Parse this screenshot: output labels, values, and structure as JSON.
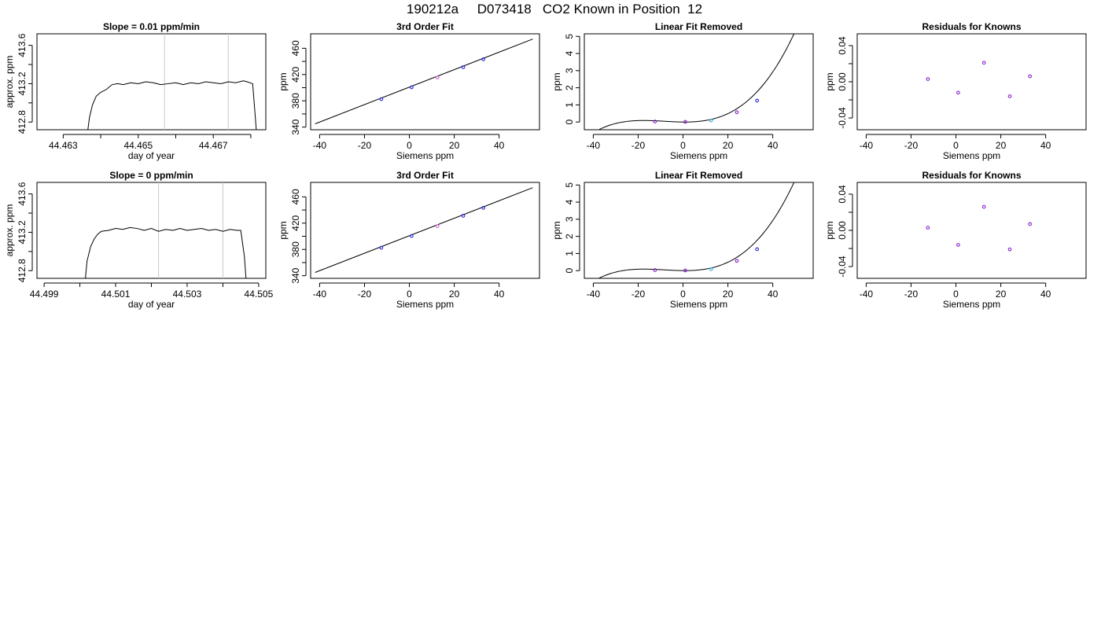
{
  "figure": {
    "title": "190212a     D073418   CO2 Known in Position  12"
  },
  "chart_data": [
    {
      "type": "line",
      "title": "Slope =  0.01  ppm/min",
      "xlabel": "day of year",
      "ylabel": "approx. ppm",
      "xlim": [
        44.4623,
        44.4684
      ],
      "ylim": [
        412.72,
        413.72
      ],
      "xticks": [
        44.463,
        44.464,
        44.465,
        44.466,
        44.467,
        44.468
      ],
      "xtick_labels": [
        "44.463",
        "",
        "44.465",
        "",
        "44.467",
        ""
      ],
      "yticks": [
        412.8,
        413.0,
        413.2,
        413.4,
        413.6
      ],
      "ytick_labels": [
        "412.8",
        "",
        "413.2",
        "",
        "413.6"
      ],
      "vlines": [
        44.4657,
        44.4674
      ],
      "vline_color": "#c8c8c8",
      "series": [
        {
          "color": "#000000",
          "x": [
            44.46365,
            44.4637,
            44.46378,
            44.46388,
            44.464,
            44.46415,
            44.4643,
            44.46445,
            44.4646,
            44.4648,
            44.465,
            44.4652,
            44.4654,
            44.4656,
            44.4658,
            44.466,
            44.4662,
            44.4664,
            44.4666,
            44.4668,
            44.467,
            44.4672,
            44.4674,
            44.4676,
            44.4678,
            44.4679,
            44.46805,
            44.4681,
            44.46815
          ],
          "y": [
            412.7,
            412.85,
            412.98,
            413.07,
            413.11,
            413.14,
            413.19,
            413.2,
            413.19,
            413.21,
            413.2,
            413.22,
            413.21,
            413.19,
            413.2,
            413.21,
            413.19,
            413.21,
            413.2,
            413.22,
            413.21,
            413.2,
            413.22,
            413.21,
            413.23,
            413.22,
            413.2,
            412.95,
            412.7
          ]
        }
      ]
    },
    {
      "type": "line",
      "title": "3rd Order Fit",
      "xlabel": "Siemens ppm",
      "ylabel": "ppm",
      "xlim": [
        -44,
        58
      ],
      "ylim": [
        336,
        482
      ],
      "xticks": [
        -40,
        -20,
        0,
        20,
        40
      ],
      "xtick_labels": [
        "-40",
        "-20",
        "0",
        "20",
        "40"
      ],
      "yticks": [
        340,
        360,
        380,
        400,
        420,
        440,
        460
      ],
      "ytick_labels": [
        "340",
        "",
        "380",
        "",
        "420",
        "",
        "460"
      ],
      "series": [
        {
          "color": "#000000",
          "x": [
            -42,
            55
          ],
          "y": [
            345,
            474
          ]
        }
      ],
      "points": {
        "x": [
          -12.5,
          1.0,
          12.5,
          24.0,
          33.0
        ],
        "y": [
          382.5,
          400.5,
          415.5,
          431.2,
          443.3
        ],
        "colors": [
          "#2222dd",
          "#2222dd",
          "#cc66cc",
          "#2222dd",
          "#2222dd"
        ]
      }
    },
    {
      "type": "line",
      "title": "Linear Fit Removed",
      "xlabel": "Siemens ppm",
      "ylabel": "ppm",
      "xlim": [
        -44,
        58
      ],
      "ylim": [
        -0.45,
        5.15
      ],
      "xticks": [
        -40,
        -20,
        0,
        20,
        40
      ],
      "xtick_labels": [
        "-40",
        "-20",
        "0",
        "20",
        "40"
      ],
      "yticks": [
        0,
        1,
        2,
        3,
        4,
        5
      ],
      "ytick_labels": [
        "0",
        "1",
        "2",
        "3",
        "4",
        "5"
      ],
      "curve_coefficients": {
        "a": 2.85e-05,
        "b": 0.00072,
        "c": -0.00122,
        "d": 0.0
      },
      "curve_range": [
        -42,
        55
      ],
      "points": {
        "x": [
          -12.5,
          1.0,
          12.5,
          24.0,
          33.0
        ],
        "y": [
          0.03,
          0.01,
          0.09,
          0.57,
          1.25
        ],
        "colors": [
          "#8a1ecc",
          "#8a1ecc",
          "#33aadd",
          "#8a1ecc",
          "#2222dd"
        ]
      }
    },
    {
      "type": "scatter",
      "title": "Residuals for Knowns",
      "xlabel": "Siemens ppm",
      "ylabel": "ppm",
      "xlim": [
        -44,
        58
      ],
      "ylim": [
        -0.053,
        0.053
      ],
      "xticks": [
        -40,
        -20,
        0,
        20,
        40
      ],
      "xtick_labels": [
        "-40",
        "-20",
        "0",
        "20",
        "40"
      ],
      "yticks": [
        -0.04,
        -0.02,
        0.0,
        0.02,
        0.04
      ],
      "ytick_labels": [
        "-0.04",
        "",
        "0.00",
        "",
        "0.04"
      ],
      "points": {
        "x": [
          -12.5,
          1.0,
          12.5,
          24.0,
          33.0
        ],
        "y": [
          0.003,
          -0.012,
          0.021,
          -0.016,
          0.006
        ],
        "colors": [
          "#8a1ecc",
          "#8a1ecc",
          "#8a1ecc",
          "#8a1ecc",
          "#8a1ecc"
        ]
      }
    },
    {
      "type": "line",
      "title": "Slope =  0  ppm/min",
      "xlabel": "day of year",
      "ylabel": "approx. ppm",
      "xlim": [
        44.4988,
        44.5052
      ],
      "ylim": [
        412.72,
        413.72
      ],
      "xticks": [
        44.499,
        44.5,
        44.501,
        44.502,
        44.503,
        44.504,
        44.505
      ],
      "xtick_labels": [
        "44.499",
        "",
        "44.501",
        "",
        "44.503",
        "",
        "44.505"
      ],
      "yticks": [
        412.8,
        413.0,
        413.2,
        413.4,
        413.6
      ],
      "ytick_labels": [
        "412.8",
        "",
        "413.2",
        "",
        "413.6"
      ],
      "vlines": [
        44.5022,
        44.504
      ],
      "vline_color": "#c8c8c8",
      "series": [
        {
          "color": "#000000",
          "x": [
            44.50015,
            44.5002,
            44.5003,
            44.5004,
            44.5005,
            44.5006,
            44.5008,
            44.501,
            44.5012,
            44.5014,
            44.5016,
            44.5018,
            44.502,
            44.5022,
            44.5024,
            44.5026,
            44.5028,
            44.503,
            44.5032,
            44.5034,
            44.5036,
            44.5038,
            44.504,
            44.5042,
            44.5044,
            44.5045,
            44.5046,
            44.50465
          ],
          "y": [
            412.7,
            412.9,
            413.05,
            413.13,
            413.18,
            413.21,
            413.22,
            413.24,
            413.23,
            413.25,
            413.24,
            413.22,
            413.24,
            413.21,
            413.23,
            413.22,
            413.24,
            413.22,
            413.23,
            413.24,
            413.22,
            413.23,
            413.21,
            413.23,
            413.22,
            413.22,
            412.95,
            412.7
          ]
        }
      ]
    },
    {
      "type": "line",
      "title": "3rd Order Fit",
      "xlabel": "Siemens ppm",
      "ylabel": "ppm",
      "xlim": [
        -44,
        58
      ],
      "ylim": [
        336,
        482
      ],
      "xticks": [
        -40,
        -20,
        0,
        20,
        40
      ],
      "xtick_labels": [
        "-40",
        "-20",
        "0",
        "20",
        "40"
      ],
      "yticks": [
        340,
        360,
        380,
        400,
        420,
        440,
        460
      ],
      "ytick_labels": [
        "340",
        "",
        "380",
        "",
        "420",
        "",
        "460"
      ],
      "series": [
        {
          "color": "#000000",
          "x": [
            -42,
            55
          ],
          "y": [
            345,
            474
          ]
        }
      ],
      "points": {
        "x": [
          -12.5,
          1.0,
          12.5,
          24.0,
          33.0
        ],
        "y": [
          382.5,
          400.5,
          415.5,
          431.2,
          443.3
        ],
        "colors": [
          "#2222dd",
          "#2222dd",
          "#cc66cc",
          "#2222dd",
          "#2222dd"
        ]
      }
    },
    {
      "type": "line",
      "title": "Linear Fit Removed",
      "xlabel": "Siemens ppm",
      "ylabel": "ppm",
      "xlim": [
        -44,
        58
      ],
      "ylim": [
        -0.45,
        5.15
      ],
      "xticks": [
        -40,
        -20,
        0,
        20,
        40
      ],
      "xtick_labels": [
        "-40",
        "-20",
        "0",
        "20",
        "40"
      ],
      "yticks": [
        0,
        1,
        2,
        3,
        4,
        5
      ],
      "ytick_labels": [
        "0",
        "1",
        "2",
        "3",
        "4",
        "5"
      ],
      "curve_coefficients": {
        "a": 2.85e-05,
        "b": 0.00072,
        "c": -0.00122,
        "d": 0.0
      },
      "curve_range": [
        -42,
        55
      ],
      "points": {
        "x": [
          -12.5,
          1.0,
          12.5,
          24.0,
          33.0
        ],
        "y": [
          0.03,
          0.01,
          0.09,
          0.57,
          1.25
        ],
        "colors": [
          "#8a1ecc",
          "#8a1ecc",
          "#33aadd",
          "#8a1ecc",
          "#2222dd"
        ]
      }
    },
    {
      "type": "scatter",
      "title": "Residuals for Knowns",
      "xlabel": "Siemens ppm",
      "ylabel": "ppm",
      "xlim": [
        -44,
        58
      ],
      "ylim": [
        -0.053,
        0.053
      ],
      "xticks": [
        -40,
        -20,
        0,
        20,
        40
      ],
      "xtick_labels": [
        "-40",
        "-20",
        "0",
        "20",
        "40"
      ],
      "yticks": [
        -0.04,
        -0.02,
        0.0,
        0.02,
        0.04
      ],
      "ytick_labels": [
        "-0.04",
        "",
        "0.00",
        "",
        "0.04"
      ],
      "points": {
        "x": [
          -12.5,
          1.0,
          12.5,
          24.0,
          33.0
        ],
        "y": [
          0.003,
          -0.016,
          0.026,
          -0.021,
          0.007
        ],
        "colors": [
          "#8a1ecc",
          "#8a1ecc",
          "#8a1ecc",
          "#8a1ecc",
          "#8a1ecc"
        ]
      }
    }
  ]
}
